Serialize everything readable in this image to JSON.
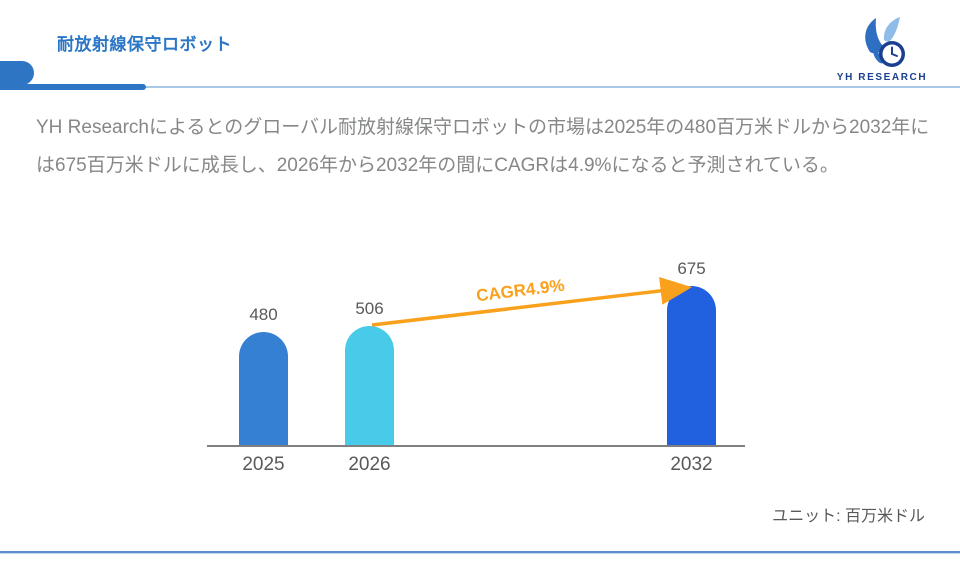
{
  "header": {
    "title": "耐放射線保守ロボット",
    "brand": "YH RESEARCH"
  },
  "theme": {
    "accent_blue": "#2E75C4",
    "divider_light_blue": "#A9C7E8",
    "footer_line_blue": "#5C8DCE",
    "text_gray": "#858789",
    "label_gray": "#595959"
  },
  "description": "YH Researchによるとのグローバル耐放射線保守ロボットの市場は2025年の480百万米ドルから2032年には675百万米ドルに成長し、2026年から2032年の間にCAGRは4.9%になると予測されている。",
  "chart_data": {
    "type": "bar",
    "title": "",
    "categories": [
      "2025",
      "2026",
      "2032"
    ],
    "values": [
      480,
      506,
      675
    ],
    "bar_colors": [
      "#3580D2",
      "#47CBE8",
      "#2161E0"
    ],
    "ylabel": "",
    "xlabel": "",
    "ylim": [
      0,
      720
    ],
    "grid": false,
    "legend": "none",
    "axis_color": "#7F7F7F",
    "annotation": {
      "label": "CAGR4.9%",
      "color": "#F9A11C",
      "from_category": "2026",
      "to_category": "2032"
    },
    "unit_label": "ユニット: 百万米ドル"
  }
}
